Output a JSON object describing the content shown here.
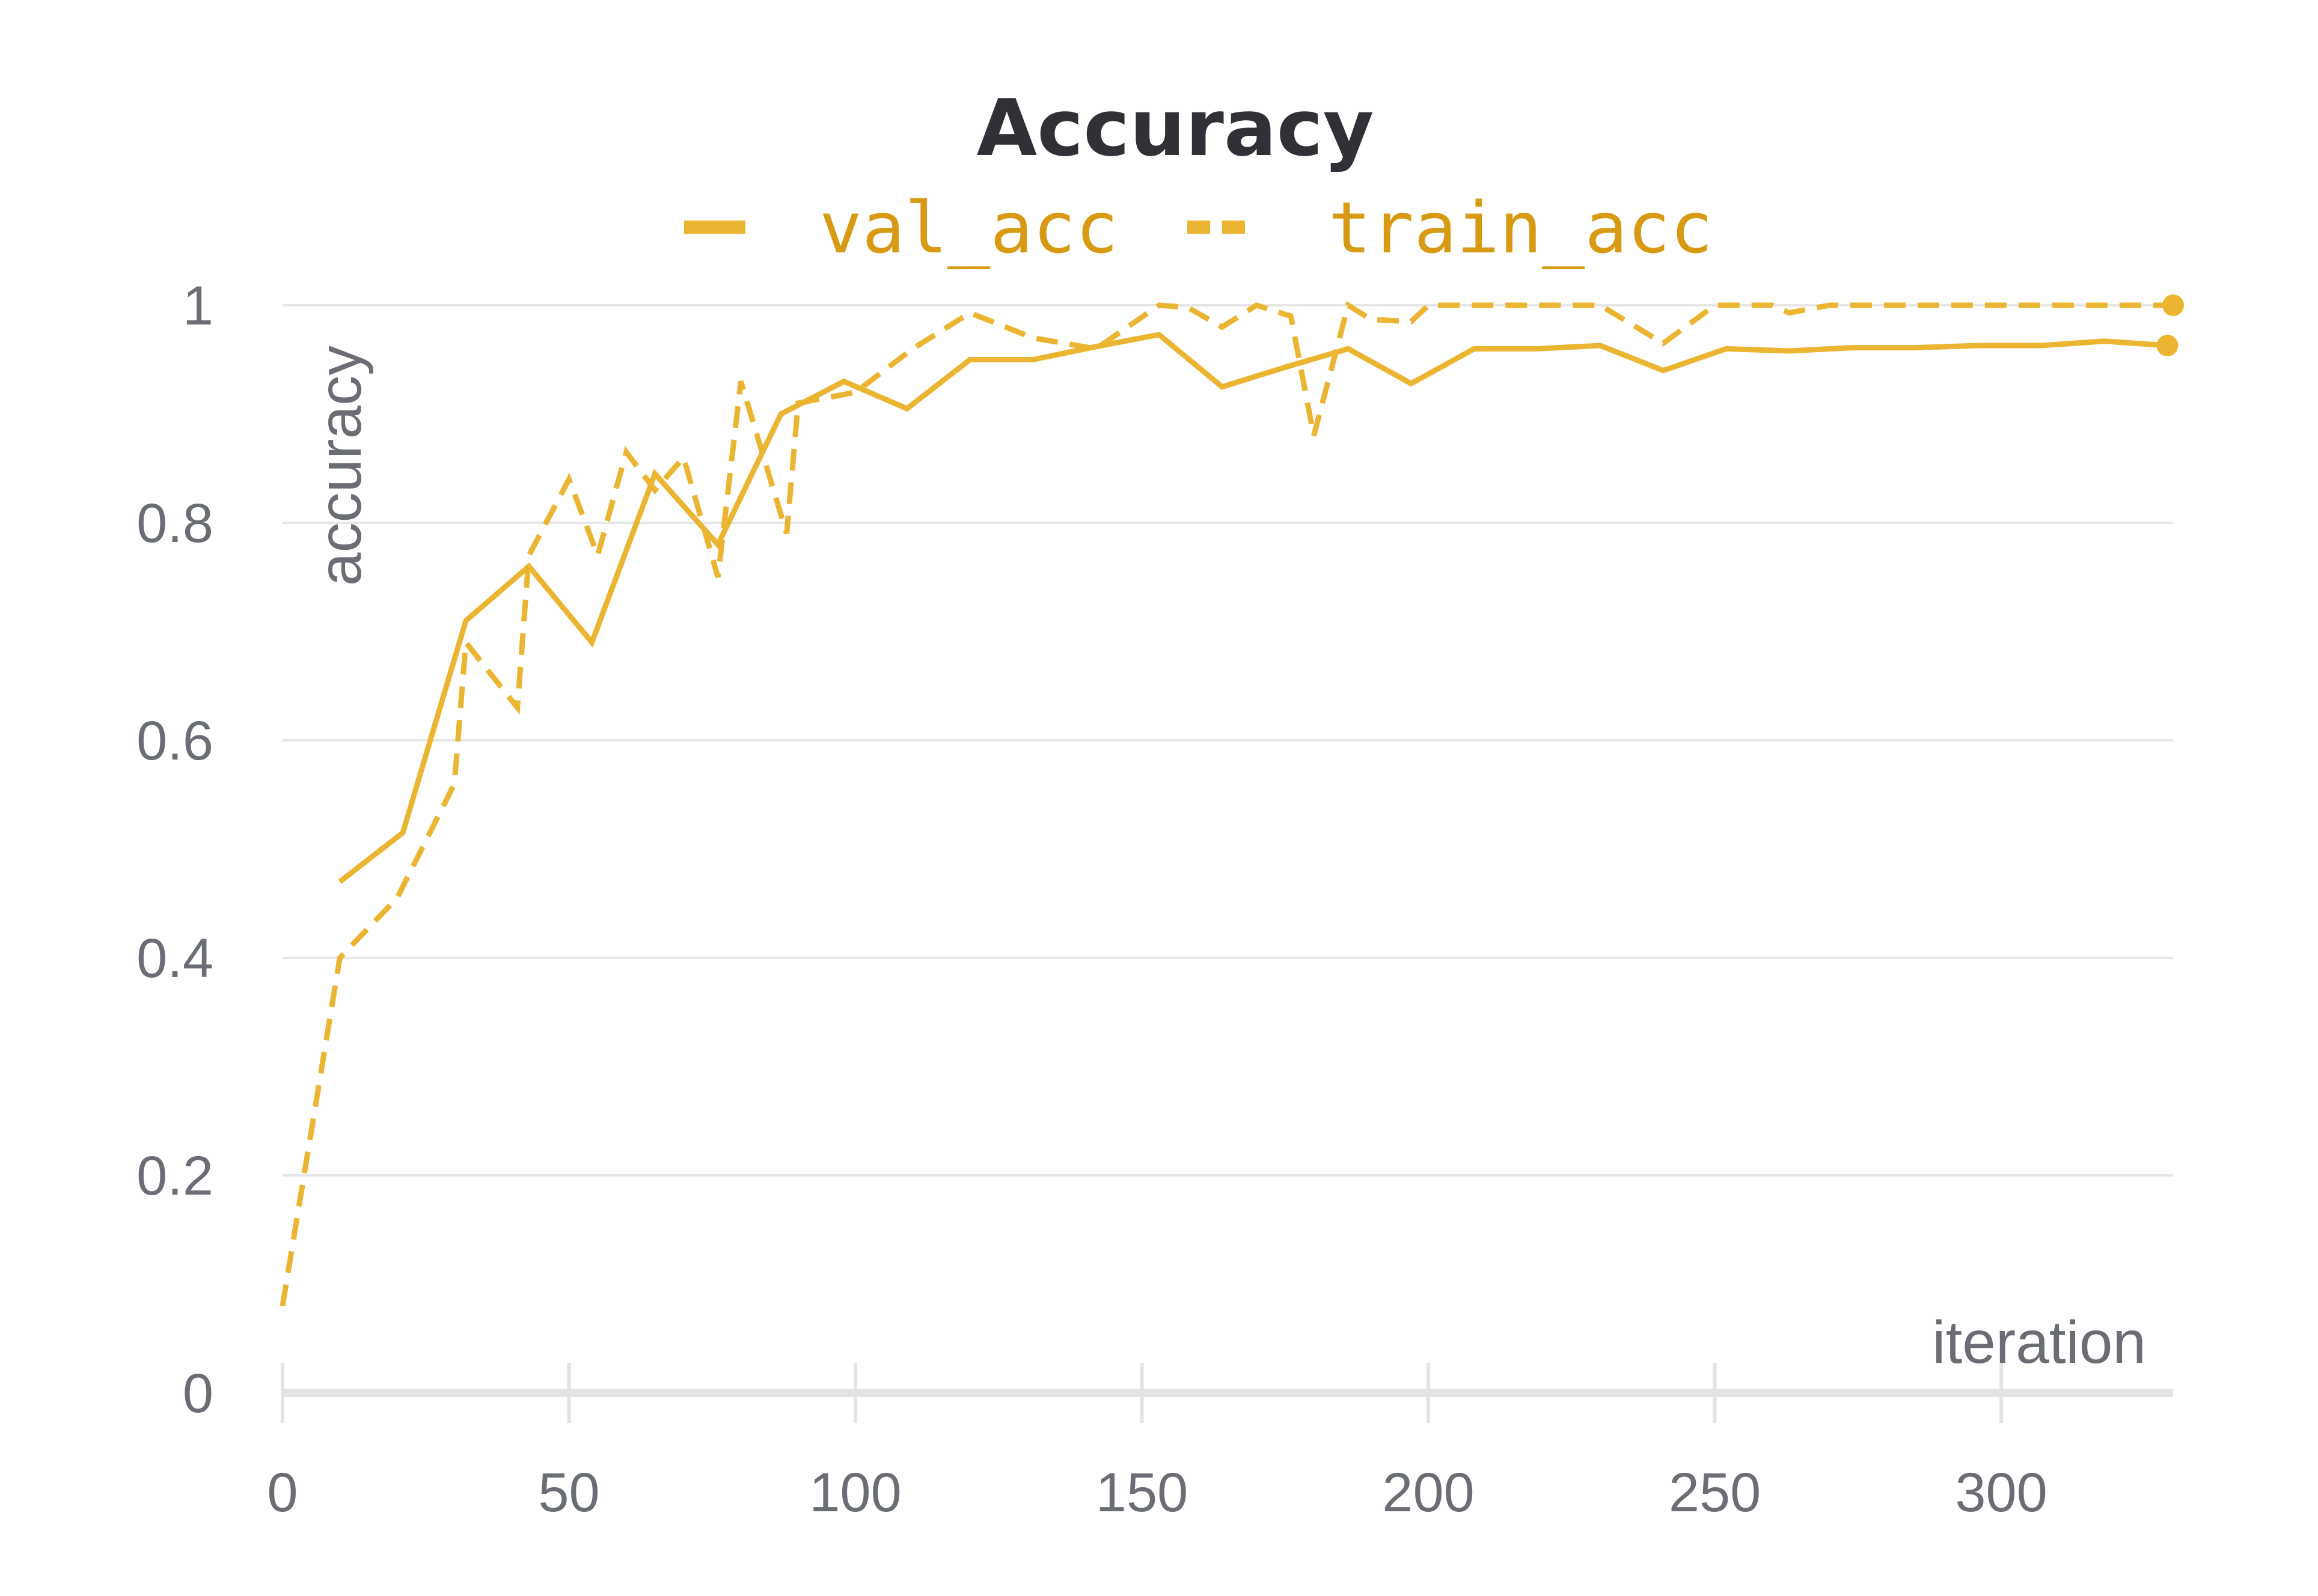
{
  "chart_data": {
    "type": "line",
    "title": "Accuracy",
    "xlabel": "iteration",
    "ylabel": "accuracy",
    "xlim": [
      0,
      330
    ],
    "ylim": [
      0,
      1
    ],
    "x_ticks": [
      "0",
      "50",
      "100",
      "150",
      "200",
      "250",
      "300"
    ],
    "x_tick_values": [
      0,
      50,
      100,
      150,
      200,
      250,
      300
    ],
    "y_ticks": [
      "0",
      "0.2",
      "0.4",
      "0.6",
      "0.8",
      "1"
    ],
    "y_tick_values": [
      0,
      0.2,
      0.4,
      0.6,
      0.8,
      1
    ],
    "grid": true,
    "legend_position": "top",
    "colors": {
      "line": "#ebb532",
      "legend_text": "#d89a12",
      "axis_text": "#6b6d75",
      "title": "#2f3136"
    },
    "series": [
      {
        "name": "val_acc",
        "style": "solid",
        "x": [
          10,
          21,
          32,
          43,
          54,
          65,
          76,
          87,
          98,
          109,
          120,
          131,
          142,
          153,
          164,
          175,
          186,
          197,
          208,
          219,
          230,
          241,
          252,
          263,
          274,
          285,
          296,
          307,
          318,
          329
        ],
        "y": [
          0.47,
          0.515,
          0.71,
          0.76,
          0.69,
          0.845,
          0.78,
          0.9,
          0.93,
          0.905,
          0.95,
          0.95,
          0.962,
          0.973,
          0.925,
          0.943,
          0.96,
          0.928,
          0.96,
          0.96,
          0.963,
          0.94,
          0.96,
          0.958,
          0.961,
          0.961,
          0.963,
          0.963,
          0.967,
          0.963
        ]
      },
      {
        "name": "train_acc",
        "style": "dashed",
        "x": [
          0,
          10,
          20,
          30,
          32,
          41,
          43,
          50,
          55,
          60,
          65,
          70,
          76,
          80,
          84,
          88,
          90,
          100,
          110,
          120,
          131,
          142,
          153,
          158,
          164,
          170,
          176,
          180,
          186,
          190,
          197,
          200,
          210,
          220,
          230,
          241,
          250,
          260,
          263,
          270,
          280,
          290,
          300,
          310,
          320,
          330
        ],
        "y": [
          0.08,
          0.4,
          0.455,
          0.56,
          0.69,
          0.63,
          0.77,
          0.84,
          0.77,
          0.865,
          0.83,
          0.86,
          0.75,
          0.93,
          0.86,
          0.79,
          0.91,
          0.92,
          0.96,
          0.993,
          0.97,
          0.96,
          1.0,
          0.998,
          0.98,
          1.0,
          0.99,
          0.88,
          1.0,
          0.987,
          0.985,
          1.0,
          1.0,
          1.0,
          1.0,
          0.965,
          1.0,
          1.0,
          0.993,
          1.0,
          1.0,
          1.0,
          1.0,
          1.0,
          1.0,
          1.0
        ]
      }
    ]
  }
}
